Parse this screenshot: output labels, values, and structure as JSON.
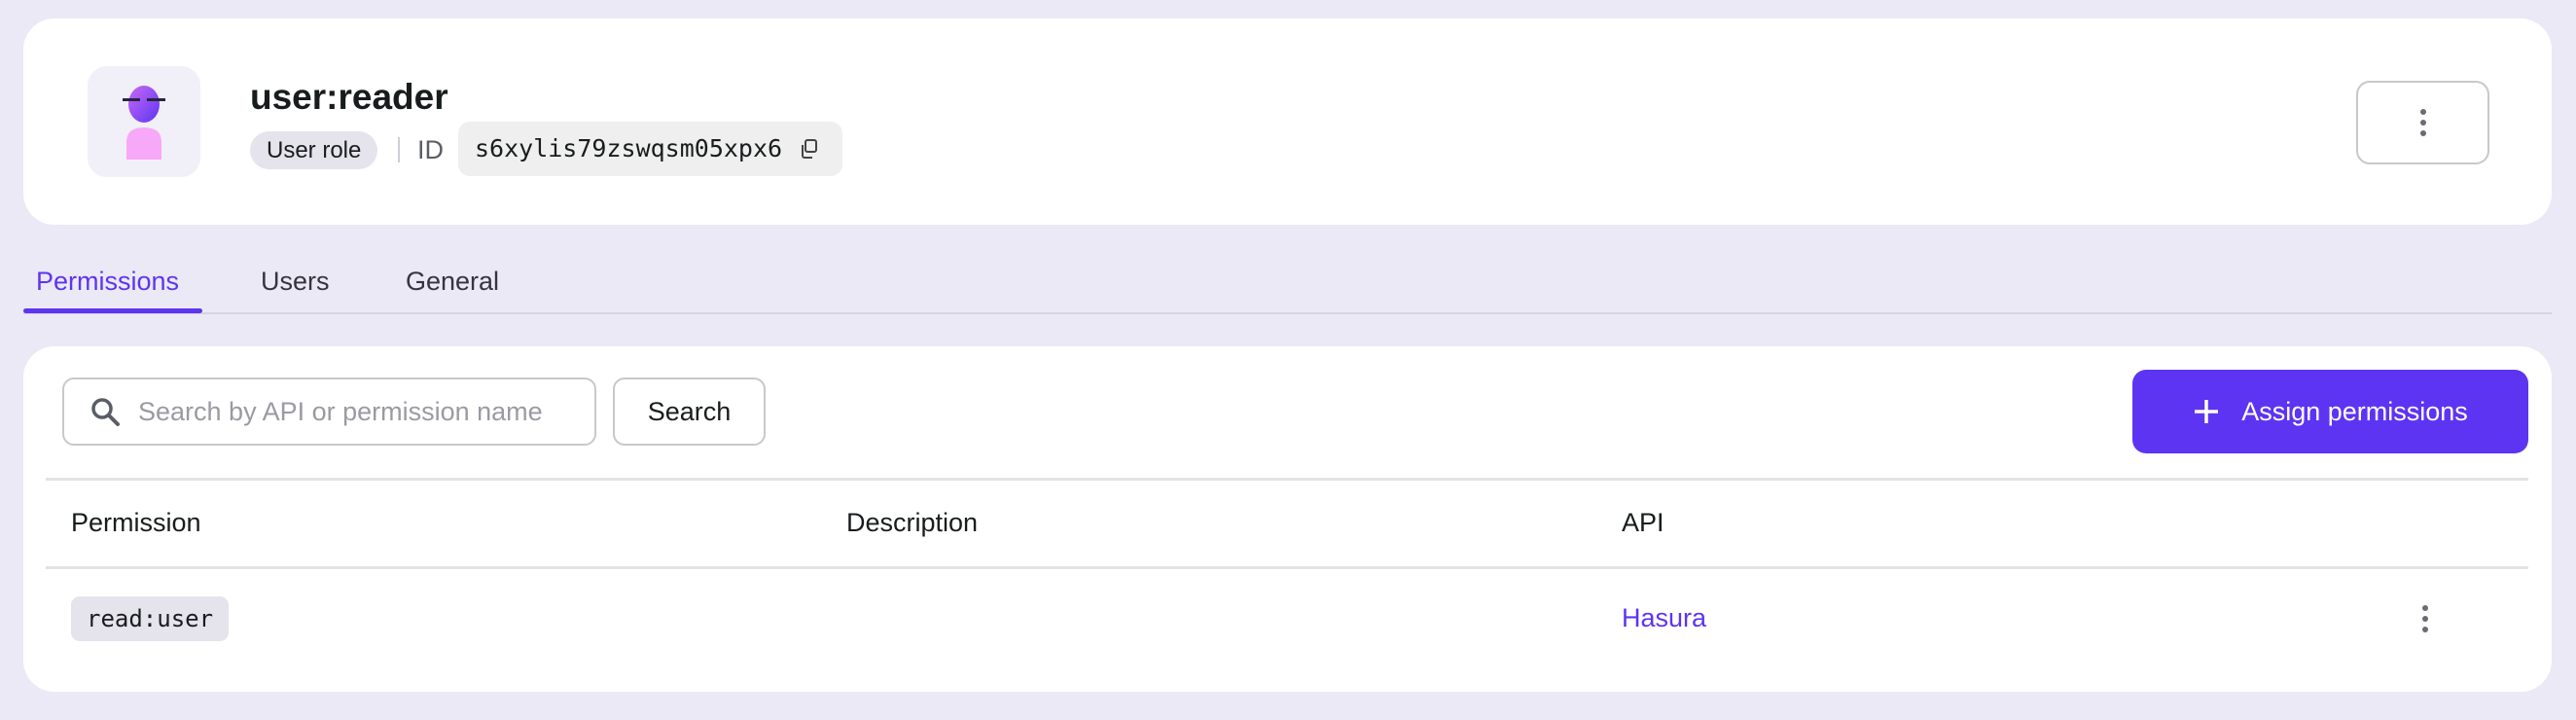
{
  "header": {
    "title": "user:reader",
    "role_badge": "User role",
    "id_label": "ID",
    "id_value": "s6xylis79zswqsm05xpx6",
    "icons": {
      "copy": "copy-icon",
      "more": "more-vertical-icon",
      "avatar": "user-avatar-icon"
    }
  },
  "tabs": [
    {
      "label": "Permissions",
      "active": true
    },
    {
      "label": "Users"
    },
    {
      "label": "General"
    }
  ],
  "toolbar": {
    "search_placeholder": "Search by API or permission name",
    "search_value": "",
    "search_button": "Search",
    "assign_button": "Assign permissions"
  },
  "table": {
    "columns": [
      "Permission",
      "Description",
      "API"
    ],
    "rows": [
      {
        "permission": "read:user",
        "description": "",
        "api": "Hasura"
      }
    ]
  },
  "colors": {
    "accent": "#5d34f2",
    "background": "#ebe9f5"
  }
}
